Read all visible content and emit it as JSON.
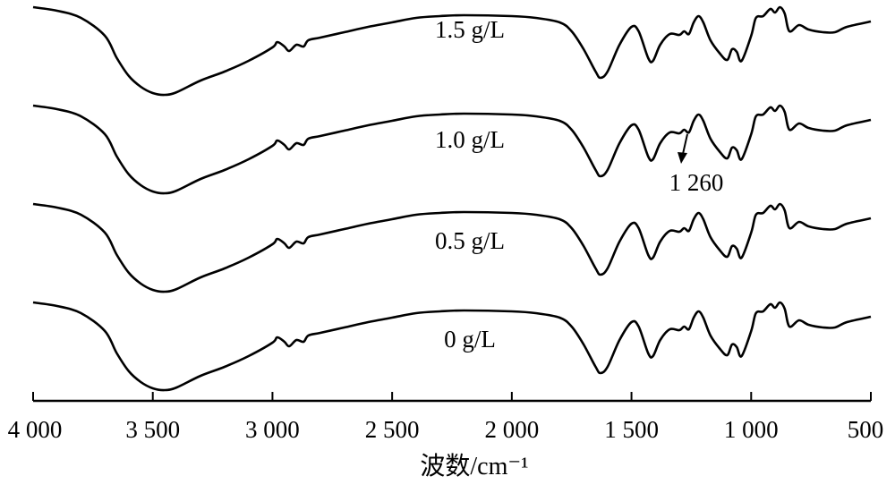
{
  "chart_data": {
    "type": "line",
    "title": "",
    "xlabel": "波数/cm⁻¹",
    "ylabel": "",
    "xlim": [
      4000,
      500
    ],
    "ylim": [
      0,
      448
    ],
    "xticks": [
      4000,
      3500,
      3000,
      2500,
      2000,
      1500,
      1000,
      500
    ],
    "xtick_labels": [
      "4 000",
      "3 500",
      "3 000",
      "2 500",
      "2 000",
      "1 500",
      "1 000",
      "500"
    ],
    "x": [
      4000,
      3900,
      3800,
      3700,
      3650,
      3600,
      3550,
      3500,
      3450,
      3400,
      3300,
      3200,
      3100,
      3000,
      2980,
      2950,
      2930,
      2900,
      2870,
      2850,
      2800,
      2700,
      2600,
      2500,
      2400,
      2300,
      2200,
      2000,
      1900,
      1800,
      1750,
      1700,
      1650,
      1630,
      1600,
      1550,
      1500,
      1470,
      1430,
      1410,
      1380,
      1340,
      1300,
      1280,
      1260,
      1240,
      1220,
      1200,
      1170,
      1130,
      1100,
      1080,
      1060,
      1040,
      1000,
      980,
      950,
      920,
      900,
      880,
      860,
      840,
      800,
      760,
      700,
      650,
      600,
      500
    ],
    "base_shape": [
      330,
      326,
      318,
      298,
      273,
      253,
      241,
      234,
      232,
      235,
      248,
      258,
      270,
      285,
      291,
      286,
      281,
      288,
      286,
      293,
      296,
      302,
      308,
      313,
      318,
      320,
      321,
      320,
      318,
      313,
      303,
      283,
      258,
      251,
      258,
      288,
      308,
      303,
      273,
      270,
      288,
      300,
      299,
      303,
      300,
      313,
      320,
      313,
      293,
      278,
      271,
      283,
      280,
      270,
      298,
      318,
      320,
      328,
      324,
      330,
      323,
      303,
      310,
      305,
      302,
      302,
      308,
      314
    ],
    "series": [
      {
        "name": "1.5 g/L",
        "offset": 110
      },
      {
        "name": "1.0 g/L",
        "offset": 0
      },
      {
        "name": "0.5 g/L",
        "offset": -110
      },
      {
        "name": "0 g/L",
        "offset": -220
      }
    ],
    "annotations": [
      {
        "text": "1 260",
        "x": 1260
      }
    ],
    "grid": false,
    "legend": "inline labels"
  }
}
